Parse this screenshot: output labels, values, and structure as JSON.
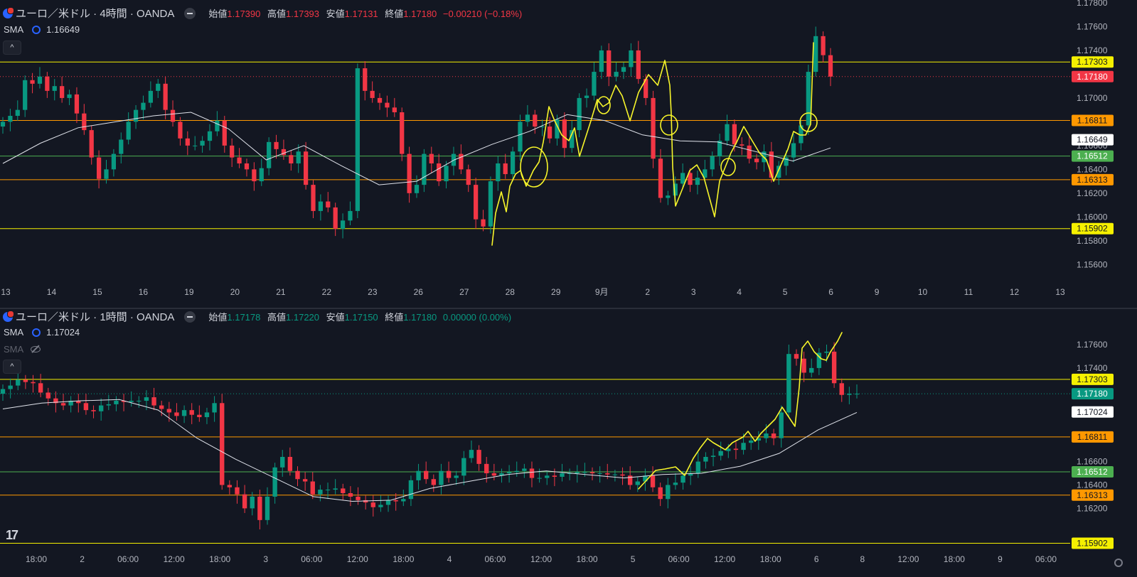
{
  "top": {
    "title": "ユーロ／米ドル · 4時間 · OANDA",
    "ohlc": {
      "open_label": "始値",
      "open": "1.17390",
      "high_label": "高値",
      "high": "1.17393",
      "low_label": "安値",
      "low": "1.17131",
      "close_label": "終値",
      "close": "1.17180",
      "change": "−0.00210 (−0.18%)"
    },
    "change_color": "#f23645",
    "sma_label": "SMA",
    "sma_value": "1.16649",
    "collapse_glyph": "^"
  },
  "bottom": {
    "title": "ユーロ／米ドル · 1時間 · OANDA",
    "ohlc": {
      "open_label": "始値",
      "open": "1.17178",
      "high_label": "高値",
      "high": "1.17220",
      "low_label": "安値",
      "low": "1.17150",
      "close_label": "終値",
      "close": "1.17180",
      "change": "0.00000 (0.00%)"
    },
    "change_color": "#089981",
    "sma_label": "SMA",
    "sma_value": "1.17024",
    "sma2_label": "SMA",
    "collapse_glyph": "^",
    "logo_text": "17"
  },
  "icons": [
    "flag-eur-usd-icon",
    "minus-icon",
    "sma-settings-icon",
    "eye-hidden-icon",
    "chevron-up-icon",
    "tradingview-logo",
    "gear-icon"
  ],
  "chart_data": [
    {
      "type": "candlestick",
      "title": "ユーロ／米ドル · 4時間 · OANDA",
      "ylim": [
        1.155,
        1.178
      ],
      "y_ticks": [
        "1.15600",
        "1.15800",
        "1.16000",
        "1.16200",
        "1.16400",
        "1.16600",
        "1.17000",
        "1.17400",
        "1.17600",
        "1.17800"
      ],
      "x_ticks": [
        "13",
        "14",
        "15",
        "16",
        "19",
        "20",
        "21",
        "22",
        "23",
        "26",
        "27",
        "28",
        "29",
        "9月",
        "2",
        "3",
        "4",
        "5",
        "6",
        "9",
        "10",
        "11",
        "12",
        "13"
      ],
      "horizontal_lines": [
        {
          "value": 1.17303,
          "label": "1.17303",
          "color": "#f5f000",
          "label_text_color": "#131722"
        },
        {
          "value": 1.16811,
          "label": "1.16811",
          "color": "#ff9800",
          "label_text_color": "#131722"
        },
        {
          "value": 1.16512,
          "label": "1.16512",
          "color": "#4caf50",
          "label_text_color": "#ffffff"
        },
        {
          "value": 1.16313,
          "label": "1.16313",
          "color": "#ff9800",
          "label_text_color": "#131722"
        },
        {
          "value": 1.15902,
          "label": "1.15902",
          "color": "#f5f000",
          "label_text_color": "#131722"
        }
      ],
      "price_labels": [
        {
          "value": 1.1718,
          "label": "1.17180",
          "color": "#f23645",
          "text_color": "#ffffff"
        },
        {
          "value": 1.16649,
          "label": "1.16649",
          "color": "#ffffff",
          "text_color": "#131722"
        }
      ],
      "last_price": 1.1718,
      "sma_last": 1.16649,
      "closes": [
        1.168,
        1.1685,
        1.169,
        1.1715,
        1.1712,
        1.1718,
        1.1706,
        1.171,
        1.17,
        1.1703,
        1.1687,
        1.1673,
        1.165,
        1.1632,
        1.164,
        1.1653,
        1.1665,
        1.168,
        1.169,
        1.1696,
        1.1706,
        1.1712,
        1.169,
        1.168,
        1.1666,
        1.166,
        1.166,
        1.1664,
        1.1672,
        1.1681,
        1.166,
        1.165,
        1.1645,
        1.164,
        1.163,
        1.1641,
        1.1663,
        1.1657,
        1.1652,
        1.1645,
        1.1655,
        1.1627,
        1.1605,
        1.1613,
        1.1608,
        1.159,
        1.1597,
        1.1605,
        1.1725,
        1.1706,
        1.17,
        1.1696,
        1.1692,
        1.1688,
        1.1653,
        1.162,
        1.1627,
        1.1653,
        1.1645,
        1.163,
        1.1643,
        1.1653,
        1.164,
        1.1627,
        1.1598,
        1.1592,
        1.163,
        1.1645,
        1.1636,
        1.1655,
        1.168,
        1.1686,
        1.1676,
        1.1676,
        1.1666,
        1.1682,
        1.1658,
        1.1673,
        1.17,
        1.1702,
        1.1722,
        1.174,
        1.1718,
        1.1722,
        1.1726,
        1.174,
        1.1716,
        1.17,
        1.1649,
        1.1616,
        1.1618,
        1.1628,
        1.1637,
        1.1627,
        1.1633,
        1.164,
        1.1651,
        1.1664,
        1.1678,
        1.1661,
        1.166,
        1.1649,
        1.1646,
        1.1655,
        1.1633,
        1.1643,
        1.165,
        1.1662,
        1.1677,
        1.1722,
        1.1752,
        1.1736,
        1.1718
      ],
      "sma": [
        1.1645,
        1.1662,
        1.1675,
        1.168,
        1.1685,
        1.1688,
        1.1674,
        1.1648,
        1.166,
        1.1643,
        1.1627,
        1.163,
        1.1648,
        1.1661,
        1.1672,
        1.1686,
        1.1681,
        1.1669,
        1.1664,
        1.1663,
        1.1655,
        1.1647,
        1.1658
      ],
      "annotations": "yellow hand-drawn freehand lines and circles over recent swings"
    },
    {
      "type": "candlestick",
      "title": "ユーロ／米ドル · 1時間 · OANDA",
      "ylim": [
        1.1585,
        1.1777
      ],
      "y_ticks": [
        "1.16200",
        "1.16400",
        "1.16600",
        "1.17400",
        "1.17600"
      ],
      "x_ticks": [
        "18:00",
        "2",
        "06:00",
        "12:00",
        "18:00",
        "3",
        "06:00",
        "12:00",
        "18:00",
        "4",
        "06:00",
        "12:00",
        "18:00",
        "5",
        "06:00",
        "12:00",
        "18:00",
        "6",
        "8",
        "12:00",
        "18:00",
        "9",
        "06:00"
      ],
      "horizontal_lines": [
        {
          "value": 1.17303,
          "label": "1.17303",
          "color": "#f5f000",
          "label_text_color": "#131722"
        },
        {
          "value": 1.16811,
          "label": "1.16811",
          "color": "#ff9800",
          "label_text_color": "#131722"
        },
        {
          "value": 1.16512,
          "label": "1.16512",
          "color": "#4caf50",
          "label_text_color": "#ffffff"
        },
        {
          "value": 1.16313,
          "label": "1.16313",
          "color": "#ff9800",
          "label_text_color": "#131722"
        },
        {
          "value": 1.15902,
          "label": "1.15902",
          "color": "#f5f000",
          "label_text_color": "#131722"
        }
      ],
      "price_labels": [
        {
          "value": 1.1718,
          "label": "1.17180",
          "color": "#089981",
          "text_color": "#ffffff"
        },
        {
          "value": 1.17024,
          "label": "1.17024",
          "color": "#ffffff",
          "text_color": "#131722"
        }
      ],
      "last_price": 1.1718,
      "sma_last": 1.17024,
      "closes": [
        1.1722,
        1.1725,
        1.173,
        1.1728,
        1.1727,
        1.1719,
        1.1714,
        1.171,
        1.1708,
        1.1712,
        1.171,
        1.1704,
        1.1703,
        1.1708,
        1.1709,
        1.1712,
        1.1711,
        1.1712,
        1.1712,
        1.1715,
        1.1708,
        1.1705,
        1.1702,
        1.1699,
        1.1704,
        1.17,
        1.1698,
        1.1702,
        1.171,
        1.164,
        1.1638,
        1.1632,
        1.162,
        1.163,
        1.161,
        1.163,
        1.1655,
        1.1664,
        1.1652,
        1.1645,
        1.1643,
        1.1632,
        1.1636,
        1.1636,
        1.1637,
        1.1633,
        1.163,
        1.1627,
        1.1625,
        1.1621,
        1.1623,
        1.1627,
        1.1626,
        1.1628,
        1.1644,
        1.1652,
        1.1645,
        1.164,
        1.1652,
        1.1646,
        1.1648,
        1.1663,
        1.167,
        1.1658,
        1.165,
        1.1648,
        1.165,
        1.1651,
        1.1652,
        1.1654,
        1.1646,
        1.1646,
        1.1648,
        1.1647,
        1.165,
        1.165,
        1.1651,
        1.1651,
        1.165,
        1.165,
        1.1649,
        1.1649,
        1.1648,
        1.164,
        1.1643,
        1.1648,
        1.1638,
        1.1628,
        1.164,
        1.1642,
        1.1648,
        1.165,
        1.166,
        1.1664,
        1.1665,
        1.1669,
        1.1671,
        1.167,
        1.1676,
        1.1678,
        1.168,
        1.1684,
        1.168,
        1.1702,
        1.1752,
        1.1748,
        1.1736,
        1.174,
        1.1753,
        1.1754,
        1.1727,
        1.1717,
        1.1718,
        1.1718
      ],
      "sma": [
        1.1705,
        1.171,
        1.1712,
        1.1713,
        1.1704,
        1.168,
        1.1662,
        1.1646,
        1.163,
        1.1626,
        1.1627,
        1.1637,
        1.1643,
        1.1649,
        1.1652,
        1.1649,
        1.1646,
        1.1649,
        1.165,
        1.1656,
        1.1667,
        1.1687,
        1.1702
      ],
      "annotations": "yellow hand-drawn freehand line tracing the rally"
    }
  ]
}
